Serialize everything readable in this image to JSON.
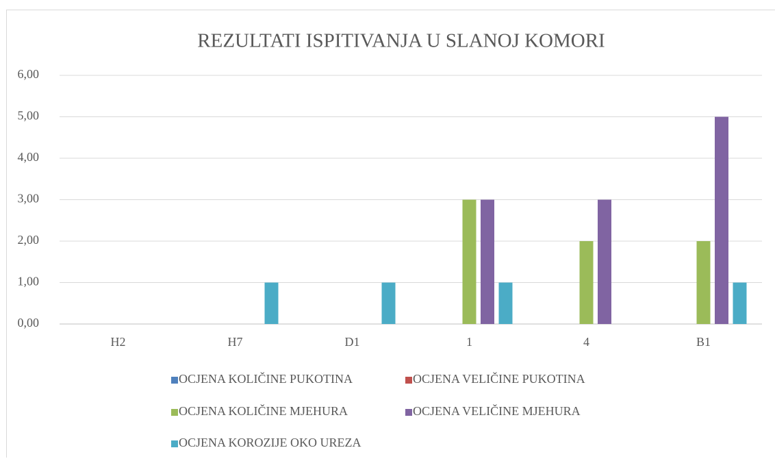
{
  "chart_data": {
    "type": "bar",
    "title": "REZULTATI ISPITIVANJA U SLANOJ KOMORI",
    "categories": [
      "H2",
      "H7",
      "D1",
      "1",
      "4",
      "B1"
    ],
    "series": [
      {
        "name": "OCJENA KOLIČINE PUKOTINA",
        "color": "#4f81bd",
        "values": [
          0,
          0,
          0,
          0,
          0,
          0
        ]
      },
      {
        "name": "OCJENA VELIČINE PUKOTINA",
        "color": "#c0504d",
        "values": [
          0,
          0,
          0,
          0,
          0,
          0
        ]
      },
      {
        "name": "OCJENA KOLIČINE MJEHURA",
        "color": "#9bbb59",
        "values": [
          0,
          0,
          0,
          3,
          2,
          2
        ]
      },
      {
        "name": "OCJENA VELIČINE MJEHURA",
        "color": "#8064a2",
        "values": [
          0,
          0,
          0,
          3,
          3,
          5
        ]
      },
      {
        "name": "OCJENA KOROZIJE OKO UREZA",
        "color": "#4bacc6",
        "values": [
          0,
          1,
          1,
          1,
          0,
          1
        ]
      }
    ],
    "ylim": [
      0,
      6
    ],
    "yticks": [
      {
        "value": 0,
        "label": "0,00"
      },
      {
        "value": 1,
        "label": "1,00"
      },
      {
        "value": 2,
        "label": "2,00"
      },
      {
        "value": 3,
        "label": "3,00"
      },
      {
        "value": 4,
        "label": "4,00"
      },
      {
        "value": 5,
        "label": "5,00"
      },
      {
        "value": 6,
        "label": "6,00"
      }
    ],
    "grid": true,
    "legend": "bottom"
  }
}
